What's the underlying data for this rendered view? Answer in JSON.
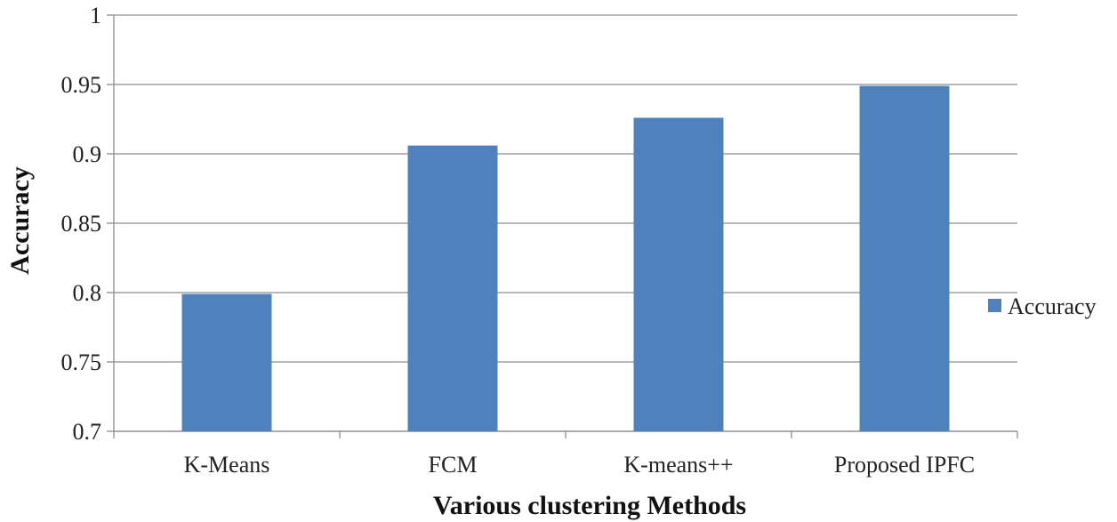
{
  "chart_data": {
    "type": "bar",
    "categories": [
      "K-Means",
      "FCM",
      "K-means++",
      "Proposed IPFC"
    ],
    "series": [
      {
        "name": "Accuracy",
        "values": [
          0.799,
          0.906,
          0.926,
          0.949
        ],
        "color": "#4f81bd"
      }
    ],
    "xlabel": "Various clustering Methods",
    "ylabel": "Accuracy",
    "ylim": [
      0.7,
      1
    ],
    "yticks": [
      "0.7",
      "0.75",
      "0.8",
      "0.85",
      "0.9",
      "0.95",
      "1"
    ],
    "grid": true,
    "legend_position": "right"
  }
}
